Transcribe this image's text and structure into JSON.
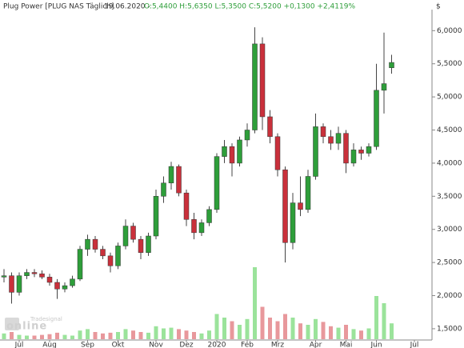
{
  "chart_data": {
    "type": "candlestick",
    "instrument": "Plug Power [PLUG NAS  Täglich]",
    "date": "19.06.2020 -",
    "quote": "O:5,4400 H:5,6350 L:5,3500 C:5,5200 +0,1300 +2,4119%",
    "currency": "$",
    "watermark": "Tradesignal",
    "watermark_logo": "online",
    "up_color": "#2e9e3a",
    "down_color": "#c9303b",
    "up_volume_color": "#9be39b",
    "down_volume_color": "#e8989c",
    "categories": [
      null,
      null,
      "Jul",
      null,
      null,
      null,
      "Aug",
      null,
      null,
      null,
      null,
      "Sep",
      null,
      null,
      null,
      "Okt",
      null,
      null,
      null,
      null,
      "Nov",
      null,
      null,
      null,
      "Dez",
      null,
      null,
      null,
      "2020",
      null,
      null,
      null,
      "Feb",
      null,
      null,
      null,
      "Mrz",
      null,
      null,
      null,
      null,
      "Apr",
      null,
      null,
      null,
      "Mai",
      null,
      null,
      null,
      "Jun",
      null,
      null,
      null,
      null,
      "Jul"
    ],
    "open": [
      2.28,
      2.3,
      2.05,
      2.3,
      2.35,
      2.33,
      2.28,
      2.2,
      2.1,
      2.15,
      2.25,
      2.7,
      2.85,
      2.7,
      2.6,
      2.45,
      2.75,
      3.05,
      2.85,
      2.65,
      2.9,
      3.5,
      3.7,
      3.95,
      3.55,
      3.15,
      2.95,
      3.1,
      3.3,
      4.1,
      4.25,
      4.0,
      4.35,
      4.5,
      5.8,
      4.7,
      4.4,
      3.9,
      2.8,
      3.4,
      3.3,
      3.8,
      4.55,
      4.4,
      4.3,
      4.45,
      4.0,
      4.2,
      4.15,
      4.25,
      5.1,
      5.44,
      null,
      null,
      null
    ],
    "high": [
      2.4,
      2.35,
      2.35,
      2.4,
      2.4,
      2.38,
      2.33,
      2.25,
      2.2,
      2.3,
      2.75,
      2.92,
      2.9,
      2.75,
      2.65,
      2.8,
      3.15,
      3.1,
      2.9,
      2.95,
      3.6,
      3.8,
      4.02,
      3.98,
      3.6,
      3.25,
      3.15,
      3.35,
      4.15,
      4.35,
      4.3,
      4.4,
      4.6,
      6.05,
      5.9,
      4.8,
      4.45,
      3.95,
      3.55,
      3.8,
      3.9,
      4.75,
      4.6,
      4.5,
      4.55,
      4.5,
      4.3,
      4.25,
      4.3,
      5.5,
      5.97,
      5.635,
      null,
      null,
      null
    ],
    "low": [
      2.2,
      1.88,
      2.0,
      2.25,
      2.28,
      2.25,
      2.15,
      1.95,
      2.05,
      2.12,
      2.22,
      2.6,
      2.65,
      2.55,
      2.35,
      2.4,
      2.7,
      2.8,
      2.55,
      2.6,
      2.85,
      3.4,
      3.6,
      3.5,
      3.05,
      2.85,
      2.9,
      3.05,
      3.25,
      4.0,
      3.8,
      3.95,
      4.25,
      4.45,
      4.5,
      4.3,
      3.8,
      2.5,
      2.7,
      3.2,
      3.25,
      3.75,
      4.3,
      4.2,
      4.2,
      3.85,
      3.95,
      4.05,
      4.1,
      4.2,
      4.75,
      5.35,
      null,
      null,
      null
    ],
    "close": [
      2.3,
      2.05,
      2.3,
      2.35,
      2.33,
      2.28,
      2.2,
      2.1,
      2.15,
      2.25,
      2.7,
      2.85,
      2.7,
      2.6,
      2.45,
      2.75,
      3.05,
      2.85,
      2.65,
      2.9,
      3.5,
      3.7,
      3.95,
      3.55,
      3.15,
      2.95,
      3.1,
      3.3,
      4.1,
      4.25,
      4.0,
      4.35,
      4.5,
      5.8,
      4.7,
      4.4,
      3.9,
      2.8,
      3.4,
      3.3,
      3.8,
      4.55,
      4.4,
      4.3,
      4.45,
      4.0,
      4.2,
      4.15,
      4.25,
      5.1,
      5.2,
      5.52,
      null,
      null,
      null
    ],
    "volume": [
      8,
      10,
      6,
      5,
      5,
      6,
      7,
      9,
      6,
      5,
      12,
      14,
      10,
      8,
      9,
      10,
      14,
      12,
      10,
      9,
      18,
      15,
      16,
      14,
      12,
      10,
      8,
      12,
      35,
      30,
      25,
      20,
      28,
      100,
      45,
      30,
      25,
      35,
      30,
      22,
      20,
      28,
      24,
      18,
      16,
      20,
      14,
      12,
      15,
      60,
      50,
      22,
      null,
      null,
      null
    ],
    "ylim": [
      1.33,
      6.33
    ],
    "yticks": [
      {
        "value": 1.5,
        "label": "1,5000"
      },
      {
        "value": 2,
        "label": "2,0000"
      },
      {
        "value": 2.5,
        "label": "2,5000"
      },
      {
        "value": 3,
        "label": "3,0000"
      },
      {
        "value": 3.5,
        "label": "3,5000"
      },
      {
        "value": 4,
        "label": "4,0000"
      },
      {
        "value": 4.5,
        "label": "4,5000"
      },
      {
        "value": 5,
        "label": "5,0000"
      },
      {
        "value": 5.5,
        "label": "5,5000"
      },
      {
        "value": 6,
        "label": "6,0000"
      }
    ],
    "grid": false
  }
}
